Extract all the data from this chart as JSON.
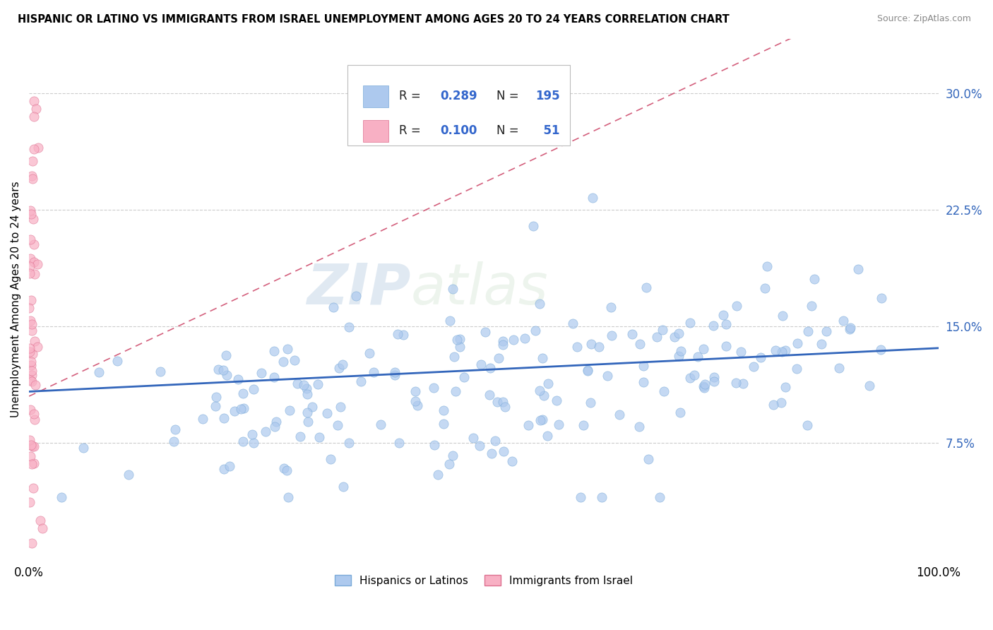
{
  "title": "HISPANIC OR LATINO VS IMMIGRANTS FROM ISRAEL UNEMPLOYMENT AMONG AGES 20 TO 24 YEARS CORRELATION CHART",
  "source": "Source: ZipAtlas.com",
  "ylabel": "Unemployment Among Ages 20 to 24 years",
  "xlim": [
    0,
    1.0
  ],
  "ylim": [
    0,
    0.33
  ],
  "yticks": [
    0.075,
    0.15,
    0.225,
    0.3
  ],
  "ytick_labels": [
    "7.5%",
    "15.0%",
    "22.5%",
    "30.0%"
  ],
  "xtick_labels": [
    "0.0%",
    "100.0%"
  ],
  "series1": {
    "name": "Hispanics or Latinos",
    "color": "#adc9ee",
    "edge_color": "#7aaad8",
    "R": 0.289,
    "N": 195,
    "trend_color": "#3366bb"
  },
  "series2": {
    "name": "Immigrants from Israel",
    "color": "#f8b0c4",
    "edge_color": "#dd7090",
    "R": 0.1,
    "N": 51,
    "trend_color": "#cc4466"
  },
  "watermark_zip": "ZIP",
  "watermark_atlas": "atlas",
  "background_color": "#ffffff",
  "grid_color": "#cccccc"
}
